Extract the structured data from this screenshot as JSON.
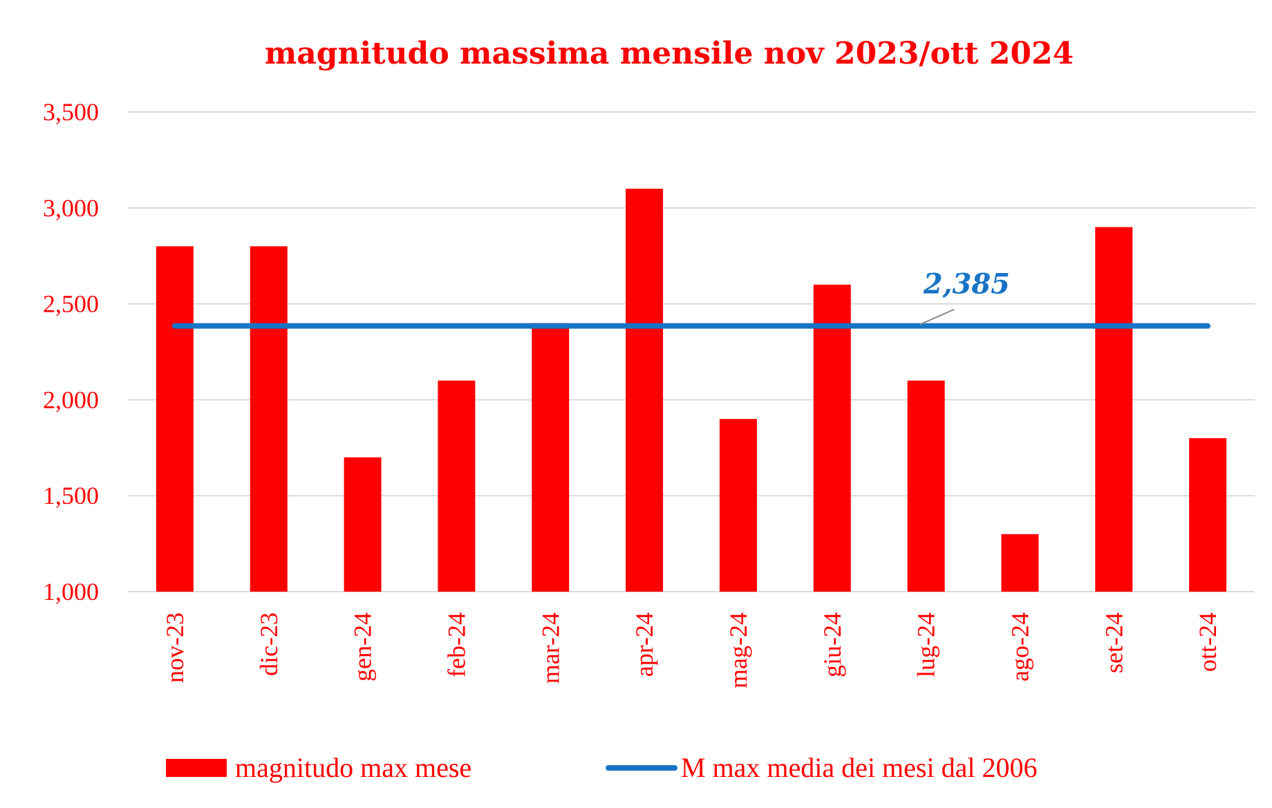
{
  "chart_data": {
    "type": "bar",
    "title": "magnitudo massima mensile nov 2023/ott 2024",
    "categories": [
      "nov-23",
      "dic-23",
      "gen-24",
      "feb-24",
      "mar-24",
      "apr-24",
      "mag-24",
      "giu-24",
      "lug-24",
      "ago-24",
      "set-24",
      "ott-24"
    ],
    "series": [
      {
        "name": "magnitudo max mese",
        "type": "bar",
        "color": "#ff0000",
        "values": [
          2.8,
          2.8,
          1.7,
          2.1,
          2.4,
          3.1,
          1.9,
          2.6,
          2.1,
          1.3,
          2.9,
          1.8
        ]
      },
      {
        "name": "M max media dei mesi dal 2006",
        "type": "line",
        "color": "#1874c4",
        "value": 2.385,
        "label": "2,385"
      }
    ],
    "ylim": [
      1.0,
      3.5
    ],
    "yticks": [
      1.0,
      1.5,
      2.0,
      2.5,
      3.0,
      3.5
    ],
    "ytick_labels": [
      "1,000",
      "1,500",
      "2,000",
      "2,500",
      "3,000",
      "3,500"
    ],
    "xlabel": "",
    "ylabel": "",
    "grid": true,
    "legend_position": "bottom"
  }
}
